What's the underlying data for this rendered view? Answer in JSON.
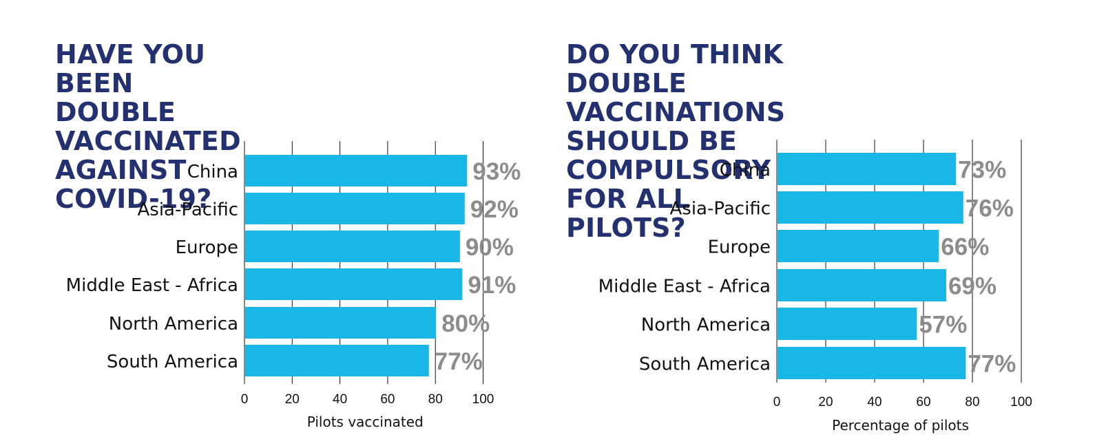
{
  "chart_data": [
    {
      "type": "bar",
      "orientation": "horizontal",
      "title": "HAVE YOU BEEN DOUBLE VACCINATED AGAINST COVID-19?",
      "title_lines": [
        "HAVE YOU BEEN DOUBLE",
        "VACCINATED AGAINST",
        "COVID-19?"
      ],
      "categories": [
        "China",
        "Asia-Pacific",
        "Europe",
        "Middle East - Africa",
        "North America",
        "South America"
      ],
      "values": [
        93,
        92,
        90,
        91,
        80,
        77
      ],
      "value_labels": [
        "93%",
        "92%",
        "90%",
        "91%",
        "80%",
        "77%"
      ],
      "xlabel": "Pilots vaccinated",
      "ylabel": "",
      "xlim": [
        0,
        100
      ],
      "ticks": [
        0,
        20,
        40,
        60,
        80,
        100
      ],
      "grid": true,
      "bar_color": "#1ab7e6",
      "value_label_color": "#8c8c8c"
    },
    {
      "type": "bar",
      "orientation": "horizontal",
      "title": "DO YOU THINK DOUBLE VACCINATIONS SHOULD BE COMPULSORY FOR ALL PILOTS?",
      "title_lines": [
        "DO YOU THINK DOUBLE",
        "VACCINATIONS SHOULD BE",
        "COMPULSORY FOR ALL PILOTS?"
      ],
      "categories": [
        "China",
        "Asia-Pacific",
        "Europe",
        "Middle East - Africa",
        "North America",
        "South America"
      ],
      "values": [
        73,
        76,
        66,
        69,
        57,
        77
      ],
      "value_labels": [
        "73%",
        "76%",
        "66%",
        "69%",
        "57%",
        "77%"
      ],
      "xlabel": "Percentage of pilots",
      "ylabel": "",
      "xlim": [
        0,
        100
      ],
      "ticks": [
        0,
        20,
        40,
        60,
        80,
        100
      ],
      "grid": true,
      "bar_color": "#1ab7e6",
      "value_label_color": "#8c8c8c"
    }
  ],
  "colors": {
    "title": "#233170",
    "bar": "#1ab7e6",
    "value_label": "#8c8c8c"
  }
}
